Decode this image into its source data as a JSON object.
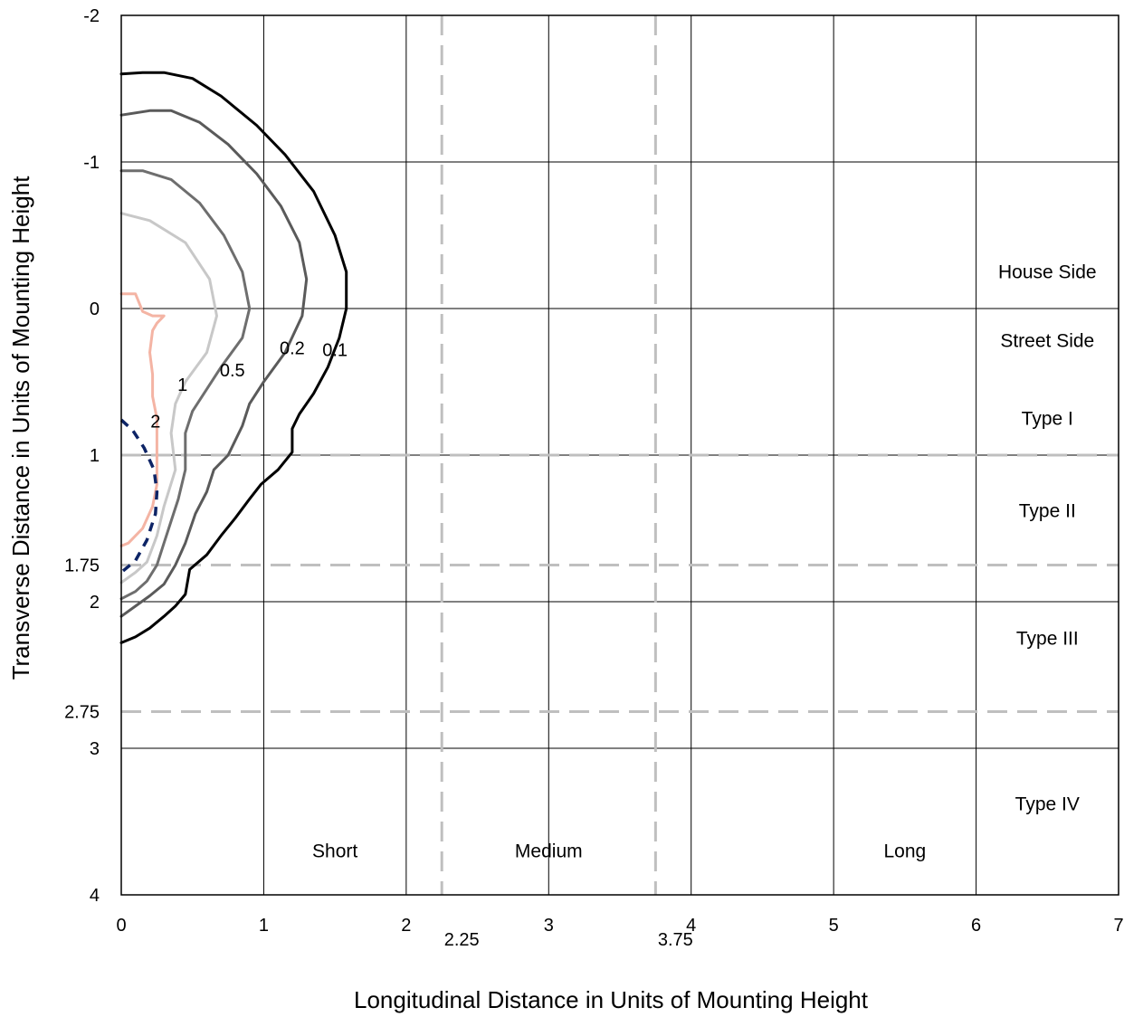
{
  "chart_data": {
    "type": "line",
    "title": "",
    "xlabel": "Longitudinal Distance in Units of Mounting Height",
    "ylabel": "Transverse Distance in Units of Mounting Height",
    "xlim": [
      0,
      7
    ],
    "ylim": [
      -2,
      4
    ],
    "y_inverted": true,
    "grid": true,
    "x_ticks": [
      "0",
      "1",
      "2",
      "3",
      "4",
      "5",
      "6",
      "7"
    ],
    "y_ticks": [
      "-2",
      "-1",
      "0",
      "1",
      "2",
      "3",
      "4"
    ],
    "extra_x_ticks": [
      {
        "value": 2.25,
        "label": "2.25"
      },
      {
        "value": 3.75,
        "label": "3.75"
      }
    ],
    "extra_y_ticks": [
      {
        "value": 1.75,
        "label": "1.75"
      },
      {
        "value": 2.75,
        "label": "2.75"
      }
    ],
    "reference_lines": {
      "vertical": [
        2.25,
        3.75
      ],
      "horizontal": [
        1,
        1.75,
        2.75
      ],
      "color": "#bfbfbf",
      "style": "dashed"
    },
    "region_labels": [
      {
        "text": "House Side",
        "x": 6.5,
        "y": -0.25
      },
      {
        "text": "Street Side",
        "x": 6.5,
        "y": 0.22
      },
      {
        "text": "Type I",
        "x": 6.5,
        "y": 0.75
      },
      {
        "text": "Type II",
        "x": 6.5,
        "y": 1.38
      },
      {
        "text": "Type III",
        "x": 6.5,
        "y": 2.25
      },
      {
        "text": "Type IV",
        "x": 6.5,
        "y": 3.38
      },
      {
        "text": "Short",
        "x": 1.5,
        "y": 3.7
      },
      {
        "text": "Medium",
        "x": 3.0,
        "y": 3.7
      },
      {
        "text": "Long",
        "x": 5.5,
        "y": 3.7
      }
    ],
    "series": [
      {
        "name": "0.1",
        "label_at": [
          1.5,
          0.28
        ],
        "color": "#000000",
        "width": 3,
        "points": [
          [
            0,
            -1.6
          ],
          [
            0.15,
            -1.61
          ],
          [
            0.3,
            -1.61
          ],
          [
            0.5,
            -1.57
          ],
          [
            0.7,
            -1.45
          ],
          [
            0.95,
            -1.25
          ],
          [
            1.15,
            -1.05
          ],
          [
            1.35,
            -0.8
          ],
          [
            1.5,
            -0.5
          ],
          [
            1.58,
            -0.25
          ],
          [
            1.58,
            0.0
          ],
          [
            1.53,
            0.2
          ],
          [
            1.45,
            0.4
          ],
          [
            1.35,
            0.58
          ],
          [
            1.25,
            0.72
          ],
          [
            1.2,
            0.82
          ],
          [
            1.2,
            0.98
          ],
          [
            1.1,
            1.1
          ],
          [
            0.98,
            1.2
          ],
          [
            0.9,
            1.3
          ],
          [
            0.8,
            1.43
          ],
          [
            0.7,
            1.55
          ],
          [
            0.6,
            1.68
          ],
          [
            0.48,
            1.78
          ],
          [
            0.45,
            1.95
          ],
          [
            0.38,
            2.03
          ],
          [
            0.3,
            2.1
          ],
          [
            0.2,
            2.18
          ],
          [
            0.1,
            2.24
          ],
          [
            0,
            2.28
          ]
        ]
      },
      {
        "name": "0.2",
        "label_at": [
          1.2,
          0.27
        ],
        "color": "#5a5a5a",
        "width": 3,
        "points": [
          [
            0,
            -1.32
          ],
          [
            0.2,
            -1.35
          ],
          [
            0.35,
            -1.35
          ],
          [
            0.55,
            -1.27
          ],
          [
            0.75,
            -1.12
          ],
          [
            0.95,
            -0.92
          ],
          [
            1.12,
            -0.7
          ],
          [
            1.25,
            -0.45
          ],
          [
            1.3,
            -0.2
          ],
          [
            1.27,
            0.05
          ],
          [
            1.15,
            0.3
          ],
          [
            1.0,
            0.5
          ],
          [
            0.9,
            0.65
          ],
          [
            0.85,
            0.8
          ],
          [
            0.75,
            1.0
          ],
          [
            0.65,
            1.1
          ],
          [
            0.6,
            1.25
          ],
          [
            0.52,
            1.4
          ],
          [
            0.45,
            1.6
          ],
          [
            0.38,
            1.75
          ],
          [
            0.3,
            1.88
          ],
          [
            0.2,
            1.96
          ],
          [
            0.1,
            2.03
          ],
          [
            0,
            2.1
          ]
        ]
      },
      {
        "name": "0.5",
        "label_at": [
          0.78,
          0.42
        ],
        "color": "#6e6e6e",
        "width": 3,
        "points": [
          [
            0,
            -0.94
          ],
          [
            0.15,
            -0.94
          ],
          [
            0.35,
            -0.88
          ],
          [
            0.55,
            -0.72
          ],
          [
            0.72,
            -0.5
          ],
          [
            0.85,
            -0.25
          ],
          [
            0.9,
            0.0
          ],
          [
            0.85,
            0.2
          ],
          [
            0.7,
            0.4
          ],
          [
            0.6,
            0.55
          ],
          [
            0.5,
            0.7
          ],
          [
            0.45,
            0.85
          ],
          [
            0.45,
            1.1
          ],
          [
            0.4,
            1.3
          ],
          [
            0.35,
            1.45
          ],
          [
            0.3,
            1.6
          ],
          [
            0.25,
            1.75
          ],
          [
            0.18,
            1.86
          ],
          [
            0.1,
            1.93
          ],
          [
            0,
            1.98
          ]
        ]
      },
      {
        "name": "1",
        "label_at": [
          0.43,
          0.52
        ],
        "color": "#c8c8c8",
        "width": 3,
        "points": [
          [
            0,
            -0.65
          ],
          [
            0.2,
            -0.6
          ],
          [
            0.45,
            -0.45
          ],
          [
            0.62,
            -0.2
          ],
          [
            0.67,
            0.05
          ],
          [
            0.6,
            0.3
          ],
          [
            0.45,
            0.5
          ],
          [
            0.38,
            0.65
          ],
          [
            0.35,
            0.85
          ],
          [
            0.38,
            1.1
          ],
          [
            0.3,
            1.35
          ],
          [
            0.25,
            1.55
          ],
          [
            0.18,
            1.73
          ],
          [
            0.1,
            1.8
          ],
          [
            0,
            1.87
          ]
        ]
      },
      {
        "name": "2",
        "label_at": [
          0.24,
          0.77
        ],
        "color": "#f4b4a4",
        "width": 3,
        "points": [
          [
            0,
            -0.1
          ],
          [
            0.1,
            -0.1
          ],
          [
            0.15,
            0.02
          ],
          [
            0.22,
            0.05
          ],
          [
            0.3,
            0.05
          ],
          [
            0.25,
            0.1
          ],
          [
            0.22,
            0.15
          ],
          [
            0.2,
            0.3
          ],
          [
            0.22,
            0.45
          ],
          [
            0.22,
            0.6
          ],
          [
            0.25,
            0.75
          ],
          [
            0.25,
            1.2
          ],
          [
            0.22,
            1.35
          ],
          [
            0.15,
            1.5
          ],
          [
            0.05,
            1.6
          ],
          [
            0,
            1.62
          ]
        ]
      },
      {
        "name": "",
        "color": "#0d2466",
        "width": 3.5,
        "dashed": true,
        "points": [
          [
            0,
            0.76
          ],
          [
            0.08,
            0.83
          ],
          [
            0.16,
            0.95
          ],
          [
            0.23,
            1.1
          ],
          [
            0.25,
            1.25
          ],
          [
            0.24,
            1.4
          ],
          [
            0.18,
            1.58
          ],
          [
            0.1,
            1.72
          ],
          [
            0,
            1.8
          ]
        ]
      }
    ]
  }
}
